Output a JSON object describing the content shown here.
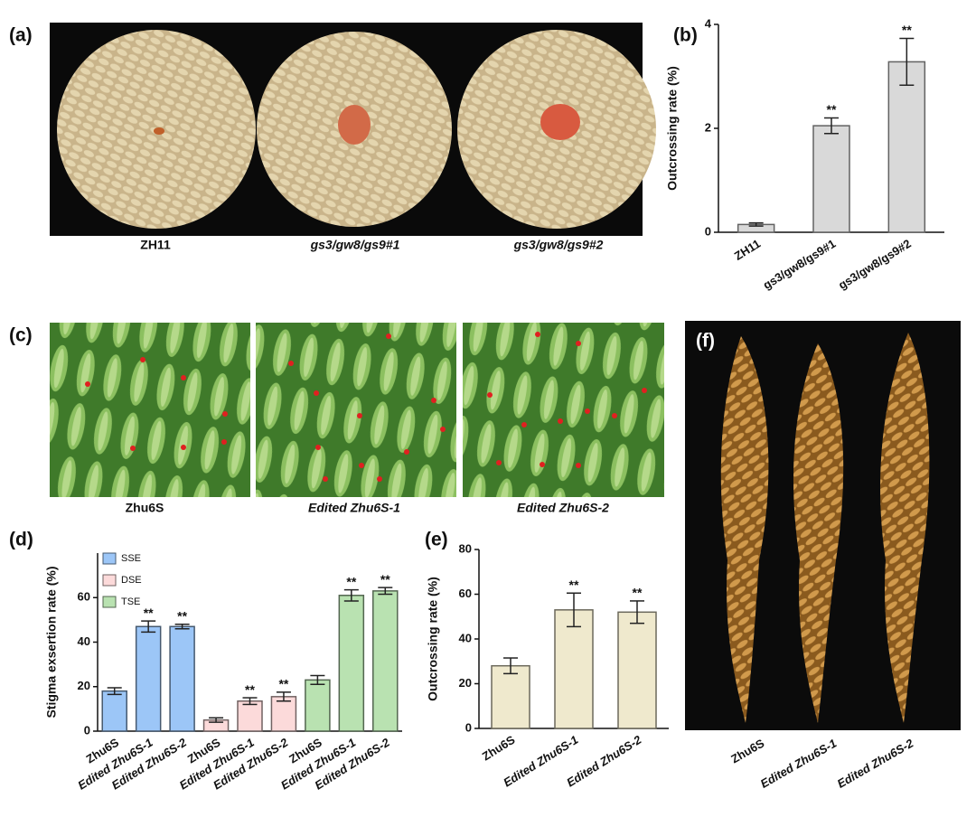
{
  "panel_labels": [
    "(a)",
    "(b)",
    "(c)",
    "(d)",
    "(e)",
    "(f)"
  ],
  "photo_a": {
    "captions": [
      "ZH11",
      "gs3/gw8/gs9#1",
      "gs3/gw8/gs9#2"
    ]
  },
  "photo_c": {
    "captions": [
      "Zhu6S",
      "Edited Zhu6S-1",
      "Edited Zhu6S-2"
    ]
  },
  "photo_f": {
    "captions": [
      "Zhu6S",
      "Edited Zhu6S-1",
      "Edited Zhu6S-2"
    ]
  },
  "chart_data": [
    {
      "type": "bar",
      "ylabel": "Outcrossing rate (%)",
      "categories": [
        "ZH11",
        "gs3/gw8/gs9#1",
        "gs3/gw8/gs9#2"
      ],
      "values": [
        0.15,
        2.05,
        3.28
      ],
      "errors": [
        0.03,
        0.15,
        0.45
      ],
      "significance": [
        null,
        "**",
        "**"
      ],
      "color": "#d9d9d9",
      "ylim": [
        0,
        4
      ],
      "yticks": [
        0,
        2,
        4
      ]
    },
    {
      "type": "grouped-bar",
      "ylabel": "Stigma exsertion rate (%)",
      "categories": [
        "Zhu6S",
        "Edited Zhu6S-1",
        "Edited Zhu6S-2"
      ],
      "series": [
        {
          "name": "SSE",
          "color": "#9cc6f7",
          "values": [
            18,
            47,
            47
          ],
          "errors": [
            1.5,
            2.5,
            1
          ],
          "significance": [
            null,
            "**",
            "**"
          ]
        },
        {
          "name": "DSE",
          "color": "#fcdada",
          "values": [
            5,
            13.5,
            15.5
          ],
          "errors": [
            1,
            1.5,
            2
          ],
          "significance": [
            null,
            "**",
            "**"
          ]
        },
        {
          "name": "TSE",
          "color": "#b9e2b1",
          "values": [
            23,
            61,
            63
          ],
          "errors": [
            2,
            2.5,
            1.5
          ],
          "significance": [
            null,
            "**",
            "**"
          ]
        }
      ],
      "legend": "top-left",
      "ylim": [
        0,
        80
      ],
      "yticks": [
        0,
        20,
        40,
        60
      ]
    },
    {
      "type": "bar",
      "ylabel": "Outcrossing rate (%)",
      "categories": [
        "Zhu6S",
        "Edited Zhu6S-1",
        "Edited Zhu6S-2"
      ],
      "values": [
        28,
        53,
        52
      ],
      "errors": [
        3.5,
        7.5,
        5
      ],
      "significance": [
        null,
        "**",
        "**"
      ],
      "color": "#efe9cd",
      "ylim": [
        0,
        80
      ],
      "yticks": [
        0,
        20,
        40,
        60,
        80
      ]
    }
  ]
}
